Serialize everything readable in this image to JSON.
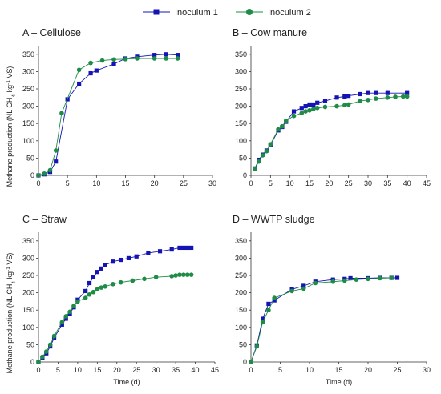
{
  "legend": {
    "items": [
      {
        "label": "Inoculum 1",
        "color": "#1414b4",
        "marker": "square"
      },
      {
        "label": "Inoculum 2",
        "color": "#1e8c46",
        "marker": "circle"
      }
    ]
  },
  "shared_ylabel": "Methane production (NL CH4 kg-1 VS)",
  "chart_data": [
    {
      "type": "line",
      "title": "A – Cellulose",
      "xlabel": "",
      "ylabel": "Methane production (NL CH4 kg-1 VS)",
      "xlim": [
        0,
        30
      ],
      "ylim": [
        0,
        375
      ],
      "xticks": [
        0,
        5,
        10,
        15,
        20,
        25,
        30
      ],
      "yticks": [
        0,
        50,
        100,
        150,
        200,
        250,
        300,
        350
      ],
      "series": [
        {
          "name": "Inoculum 1",
          "x": [
            0,
            1,
            2,
            3,
            5,
            7,
            9,
            10,
            13,
            15,
            17,
            20,
            22,
            24
          ],
          "y": [
            0,
            3,
            10,
            40,
            220,
            265,
            295,
            303,
            322,
            338,
            343,
            348,
            350,
            348
          ]
        },
        {
          "name": "Inoculum 2",
          "x": [
            0,
            1,
            2,
            3,
            4,
            7,
            9,
            11,
            13,
            15,
            17,
            20,
            22,
            24
          ],
          "y": [
            0,
            5,
            15,
            72,
            180,
            305,
            325,
            332,
            335,
            336,
            338,
            338,
            338,
            338
          ]
        }
      ]
    },
    {
      "type": "line",
      "title": "B – Cow manure",
      "xlabel": "",
      "ylabel": "",
      "xlim": [
        0,
        45
      ],
      "ylim": [
        0,
        375
      ],
      "xticks": [
        0,
        5,
        10,
        15,
        20,
        25,
        30,
        35,
        40,
        45
      ],
      "yticks": [
        0,
        50,
        100,
        150,
        200,
        250,
        300,
        350
      ],
      "series": [
        {
          "name": "Inoculum 1",
          "x": [
            1,
            2,
            3,
            4,
            5,
            7,
            8,
            9,
            11,
            13,
            14,
            15,
            16,
            17,
            19,
            22,
            24,
            25,
            28,
            30,
            32,
            35,
            40
          ],
          "y": [
            20,
            45,
            60,
            72,
            88,
            130,
            140,
            155,
            185,
            195,
            200,
            205,
            205,
            210,
            215,
            225,
            228,
            230,
            235,
            238,
            238,
            238,
            238
          ]
        },
        {
          "name": "Inoculum 2",
          "x": [
            1,
            2,
            3,
            4,
            5,
            7,
            8,
            9,
            11,
            13,
            14,
            15,
            16,
            17,
            19,
            22,
            24,
            25,
            28,
            30,
            32,
            35,
            37,
            39,
            40
          ],
          "y": [
            18,
            40,
            58,
            70,
            90,
            133,
            142,
            158,
            172,
            180,
            185,
            188,
            192,
            195,
            198,
            200,
            203,
            205,
            215,
            218,
            222,
            225,
            227,
            228,
            228
          ]
        }
      ]
    },
    {
      "type": "line",
      "title": "C – Straw",
      "xlabel": "Time (d)",
      "ylabel": "Methane production (NL CH4 kg-1 VS)",
      "xlim": [
        0,
        45
      ],
      "ylim": [
        0,
        375
      ],
      "xticks": [
        0,
        5,
        10,
        15,
        20,
        25,
        30,
        35,
        40,
        45
      ],
      "yticks": [
        0,
        50,
        100,
        150,
        200,
        250,
        300,
        350
      ],
      "series": [
        {
          "name": "Inoculum 1",
          "x": [
            0,
            1,
            2,
            3,
            4,
            6,
            7,
            8,
            9,
            10,
            12,
            13,
            14,
            15,
            16,
            17,
            19,
            21,
            23,
            25,
            28,
            31,
            34,
            36,
            37,
            38,
            39
          ],
          "y": [
            0,
            12,
            25,
            45,
            70,
            108,
            125,
            140,
            158,
            180,
            205,
            228,
            245,
            260,
            270,
            280,
            290,
            295,
            300,
            305,
            315,
            320,
            325,
            330,
            330,
            330,
            330
          ]
        },
        {
          "name": "Inoculum 2",
          "x": [
            0,
            1,
            2,
            3,
            4,
            6,
            7,
            8,
            9,
            10,
            12,
            13,
            14,
            15,
            16,
            17,
            19,
            21,
            24,
            27,
            30,
            34,
            35,
            36,
            37,
            38,
            39
          ],
          "y": [
            0,
            15,
            30,
            50,
            75,
            115,
            132,
            145,
            162,
            175,
            185,
            195,
            202,
            210,
            215,
            218,
            225,
            230,
            235,
            240,
            245,
            248,
            250,
            252,
            252,
            252,
            252
          ]
        }
      ]
    },
    {
      "type": "line",
      "title": "D – WWTP sludge",
      "xlabel": "Time (d)",
      "ylabel": "",
      "xlim": [
        0,
        30
      ],
      "ylim": [
        0,
        375
      ],
      "xticks": [
        0,
        5,
        10,
        15,
        20,
        25,
        30
      ],
      "yticks": [
        0,
        50,
        100,
        150,
        200,
        250,
        300,
        350
      ],
      "series": [
        {
          "name": "Inoculum 1",
          "x": [
            0,
            1,
            2,
            3,
            4,
            7,
            9,
            11,
            14,
            16,
            17,
            20,
            22,
            24,
            25
          ],
          "y": [
            0,
            48,
            125,
            168,
            178,
            210,
            220,
            232,
            238,
            240,
            242,
            242,
            243,
            243,
            243
          ]
        },
        {
          "name": "Inoculum 2",
          "x": [
            0,
            1,
            2,
            3,
            4,
            7,
            9,
            11,
            14,
            16,
            18,
            20,
            22,
            24
          ],
          "y": [
            0,
            45,
            115,
            150,
            185,
            205,
            212,
            228,
            232,
            235,
            238,
            240,
            242,
            243
          ]
        }
      ]
    }
  ]
}
